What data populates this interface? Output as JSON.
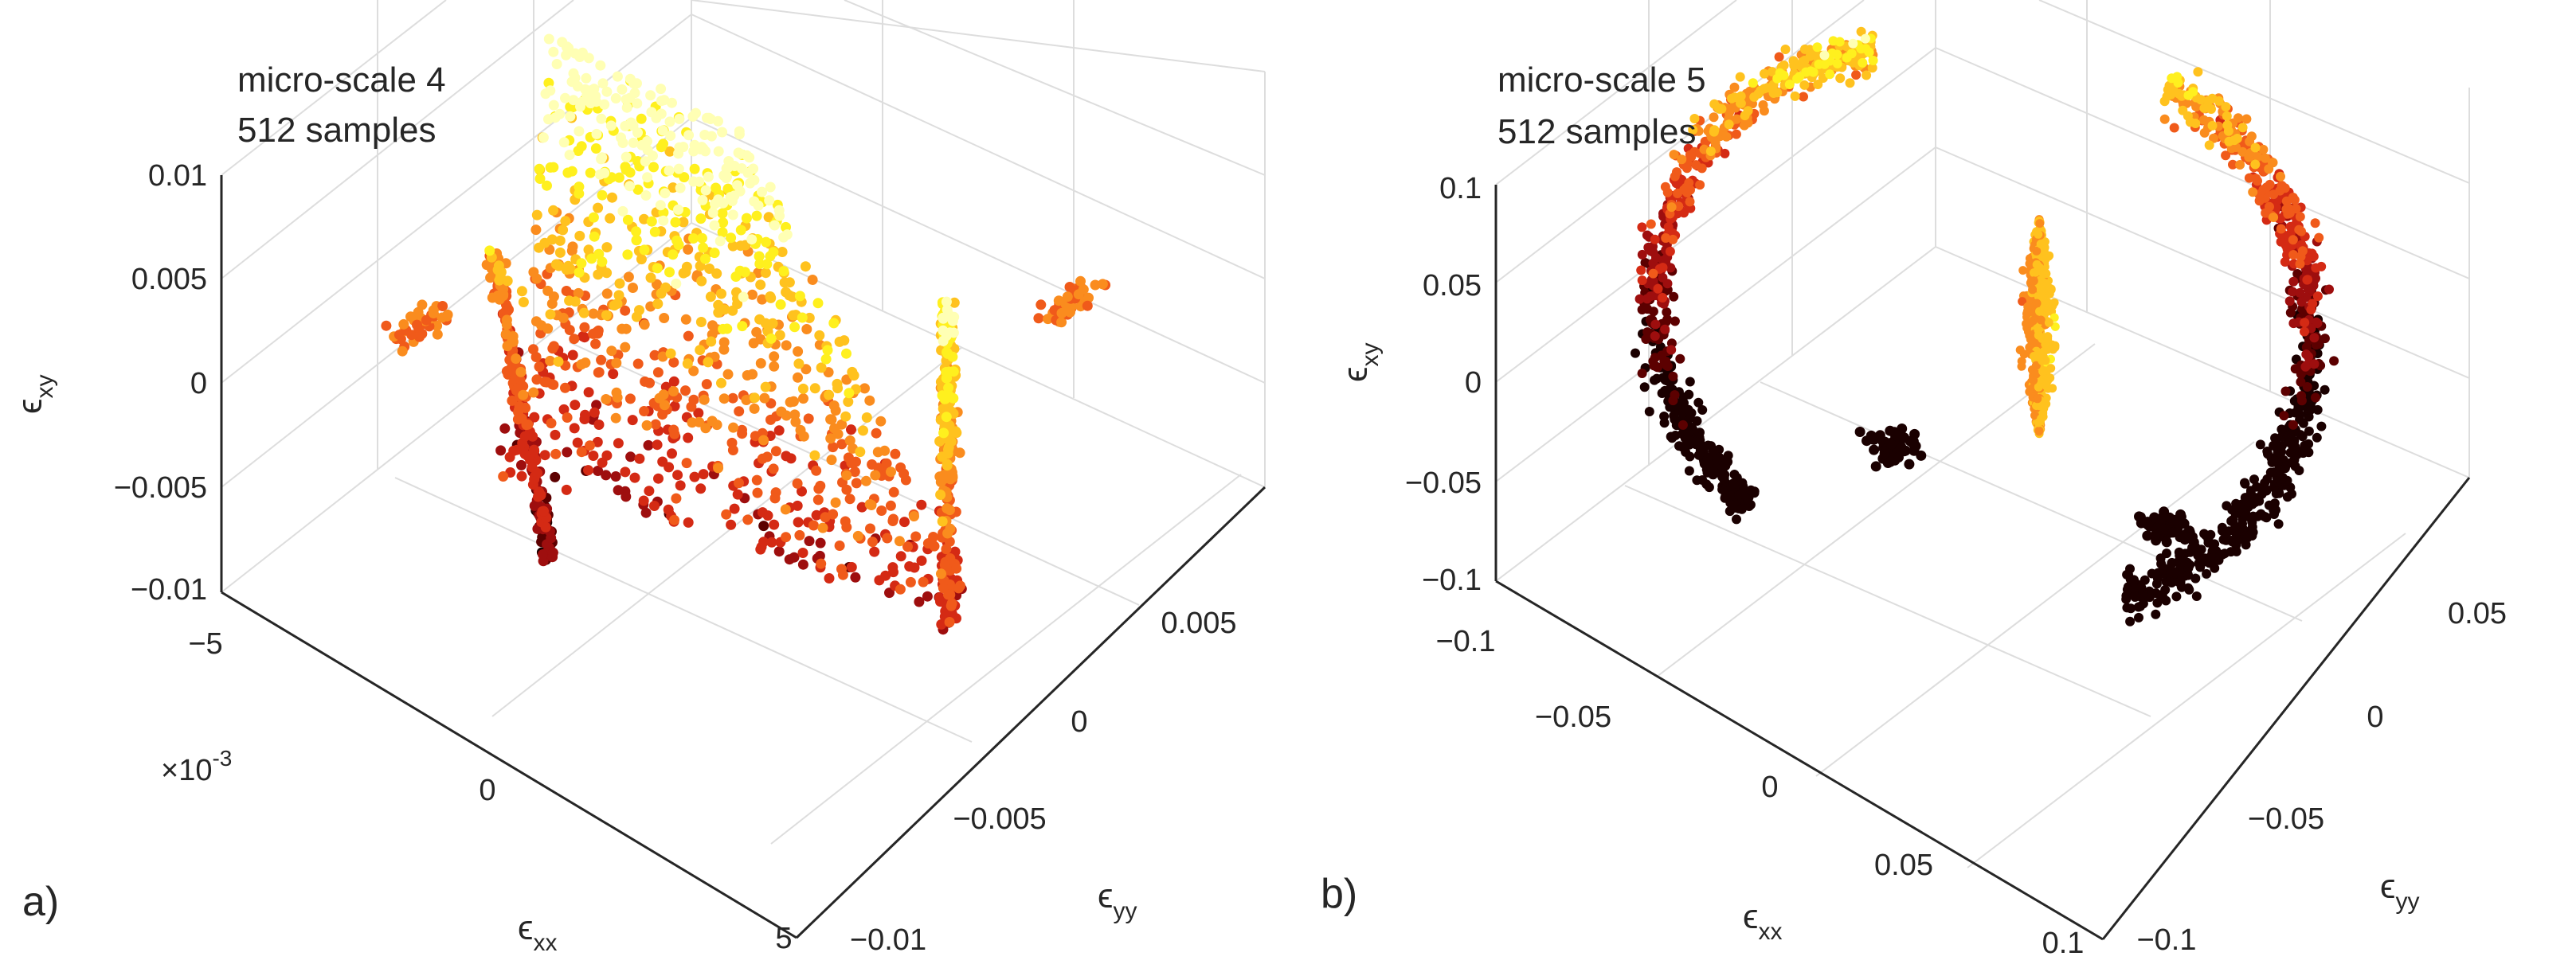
{
  "figure": {
    "panels": [
      {
        "panel_label": "a)",
        "annotation_lines": [
          "micro-scale 4",
          "512 samples"
        ],
        "xlabel": {
          "symbol": "ϵ",
          "sub": "xx"
        },
        "ylabel": {
          "symbol": "ϵ",
          "sub": "yy"
        },
        "zlabel": {
          "symbol": "ϵ",
          "sub": "xy"
        },
        "x_exponent": "×10",
        "x_exponent_power": "-3",
        "xticks": [
          "−5",
          "0",
          "5"
        ],
        "yticks": [
          "−0.01",
          "−0.005",
          "0",
          "0.005"
        ],
        "zticks": [
          "−0.01",
          "−0.005",
          "0",
          "0.005",
          "0.01"
        ]
      },
      {
        "panel_label": "b)",
        "annotation_lines": [
          "micro-scale 5",
          "512 samples"
        ],
        "xlabel": {
          "symbol": "ϵ",
          "sub": "xx"
        },
        "ylabel": {
          "symbol": "ϵ",
          "sub": "yy"
        },
        "zlabel": {
          "symbol": "ϵ",
          "sub": "xy"
        },
        "xticks": [
          "−0.1",
          "−0.05",
          "0",
          "0.05",
          "0.1"
        ],
        "yticks": [
          "−0.1",
          "−0.05",
          "0",
          "0.05"
        ],
        "zticks": [
          "−0.1",
          "−0.05",
          "0",
          "0.05",
          "0.1"
        ]
      }
    ]
  },
  "chart_data": [
    {
      "type": "scatter",
      "projection": "3d",
      "title": "",
      "annotation": [
        "micro-scale 4",
        "512 samples"
      ],
      "xlabel": "ϵxx",
      "ylabel": "ϵyy",
      "zlabel": "ϵxy",
      "x_scale_note": "×10^-3",
      "xlim": [
        -0.005,
        0.005
      ],
      "ylim": [
        -0.01,
        0.0075
      ],
      "zlim": [
        -0.01,
        0.01
      ],
      "grid": true,
      "colormap": [
        "#1a0000",
        "#5c0000",
        "#9e0e0e",
        "#d42a14",
        "#f05a1a",
        "#fa8c1e",
        "#ffc21e",
        "#fff01e",
        "#ffffb4"
      ],
      "clusters": [
        {
          "shape": "annular-band",
          "x": [
            -0.005,
            0.005
          ],
          "y": [
            -0.009,
            0.006
          ],
          "z": [
            -0.01,
            0.01
          ]
        },
        {
          "shape": "outlier-group",
          "x": -0.005,
          "y": 0.005,
          "z": 0.0
        },
        {
          "shape": "outlier-group",
          "x": 0.005,
          "y": -0.005,
          "z": 0.0
        }
      ]
    },
    {
      "type": "scatter",
      "projection": "3d",
      "title": "",
      "annotation": [
        "micro-scale 5",
        "512 samples"
      ],
      "xlabel": "ϵxx",
      "ylabel": "ϵyy",
      "zlabel": "ϵxy",
      "xlim": [
        -0.1,
        0.1
      ],
      "ylim": [
        -0.1,
        0.075
      ],
      "zlim": [
        -0.1,
        0.1
      ],
      "grid": true,
      "colormap": [
        "#1a0000",
        "#5c0000",
        "#9e0e0e",
        "#d42a14",
        "#f05a1a",
        "#fa8c1e",
        "#ffc21e",
        "#fff01e",
        "#ffffb4"
      ],
      "clusters": [
        {
          "shape": "partial-shell-left",
          "x": [
            -0.1,
            0.0
          ],
          "y": [
            -0.05,
            0.05
          ],
          "z": [
            -0.1,
            0.1
          ]
        },
        {
          "shape": "partial-shell-right",
          "x": [
            0.0,
            0.1
          ],
          "y": [
            -0.1,
            0.05
          ],
          "z": [
            -0.1,
            0.1
          ]
        },
        {
          "shape": "dense-core",
          "x": 0.0,
          "y": 0.0,
          "z": 0.0
        }
      ]
    }
  ]
}
